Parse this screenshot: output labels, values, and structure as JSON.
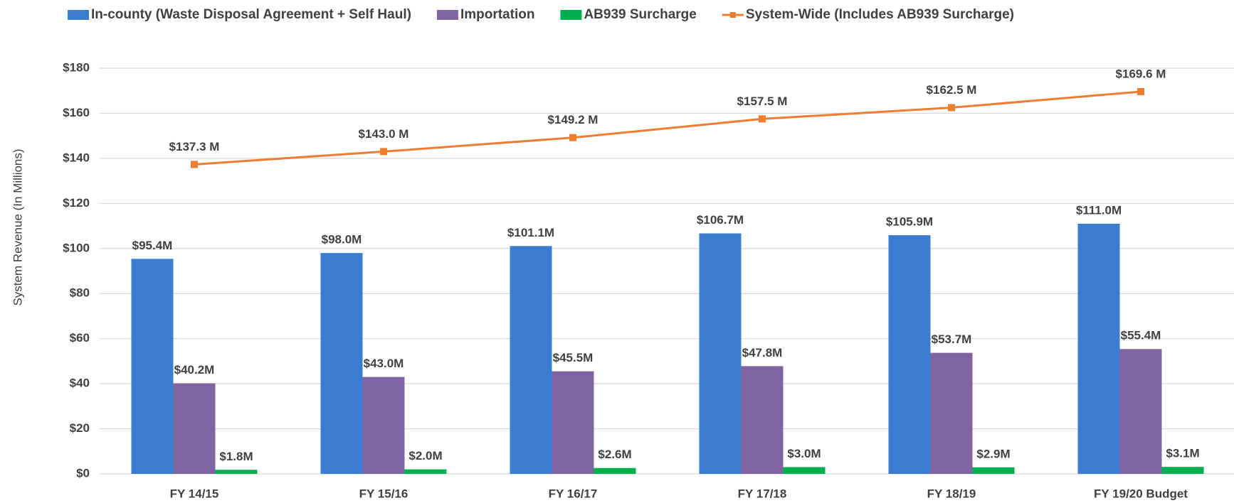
{
  "chart_data": {
    "type": "bar",
    "categories": [
      "FY 14/15",
      "FY 15/16",
      "FY 16/17",
      "FY 17/18",
      "FY 18/19",
      "FY 19/20 Budget"
    ],
    "ylabel": "System Revenue (In Millions)",
    "ylim": [
      0,
      180
    ],
    "yticks": [
      {
        "value": 0,
        "label": "$0"
      },
      {
        "value": 20,
        "label": "$20"
      },
      {
        "value": 40,
        "label": "$40"
      },
      {
        "value": 60,
        "label": "$60"
      },
      {
        "value": 80,
        "label": "$80"
      },
      {
        "value": 100,
        "label": "$100"
      },
      {
        "value": 120,
        "label": "$120"
      },
      {
        "value": 140,
        "label": "$140"
      },
      {
        "value": 160,
        "label": "$160"
      },
      {
        "value": 180,
        "label": "$180"
      }
    ],
    "grid": true,
    "legend": "top",
    "series": [
      {
        "name": "In-county (Waste Disposal Agreement + Self Haul)",
        "type": "bar",
        "color": "#3a7dd0",
        "values": [
          95.4,
          98.0,
          101.1,
          106.7,
          105.9,
          111.0
        ],
        "value_labels": [
          "$95.4M",
          "$98.0M",
          "$101.1M",
          "$106.7M",
          "$105.9M",
          "$111.0M"
        ]
      },
      {
        "name": "Importation",
        "type": "bar",
        "color": "#8064a2",
        "values": [
          40.2,
          43.0,
          45.5,
          47.8,
          53.7,
          55.4
        ],
        "value_labels": [
          "$40.2M",
          "$43.0M",
          "$45.5M",
          "$47.8M",
          "$53.7M",
          "$55.4M"
        ]
      },
      {
        "name": "AB939 Surcharge",
        "type": "bar",
        "color": "#00b050",
        "values": [
          1.8,
          2.0,
          2.6,
          3.0,
          2.9,
          3.1
        ],
        "value_labels": [
          "$1.8M",
          "$2.0M",
          "$2.6M",
          "$3.0M",
          "$2.9M",
          "$3.1M"
        ]
      },
      {
        "name": "System-Wide (Includes AB939 Surcharge)",
        "type": "line",
        "color": "#ed7d31",
        "values": [
          137.3,
          143.0,
          149.2,
          157.5,
          162.5,
          169.6
        ],
        "value_labels": [
          "$137.3 M",
          "$143.0 M",
          "$149.2 M",
          "$157.5 M",
          "$162.5 M",
          "$169.6 M"
        ]
      }
    ]
  }
}
